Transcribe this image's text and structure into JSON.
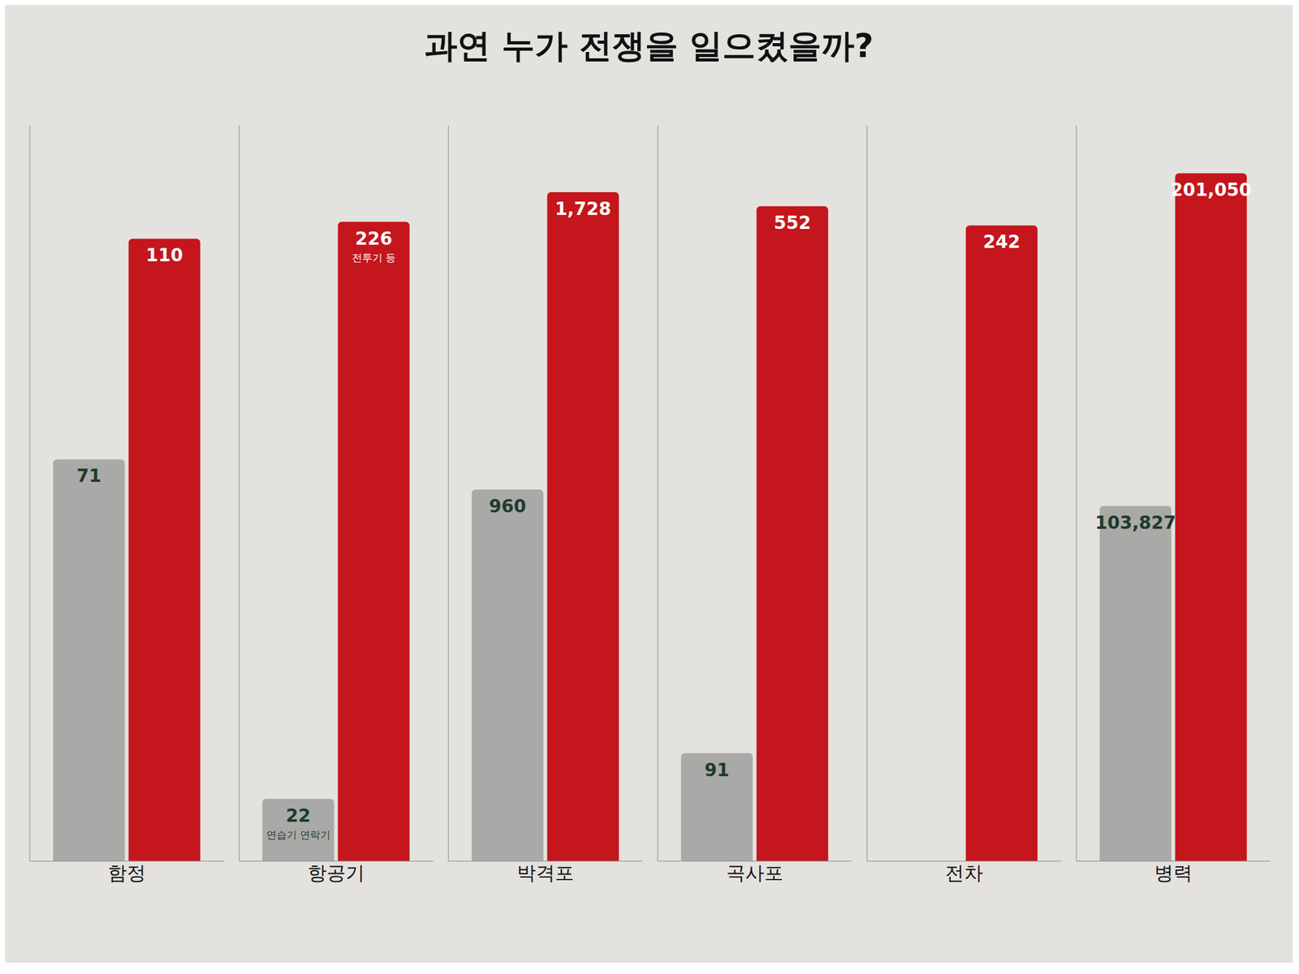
{
  "chart_data": [
    {
      "type": "bar",
      "title": "과연 누가 전쟁을 일으켰을까?",
      "categories": [
        "함정"
      ],
      "series": [
        {
          "color": "#a9a9a7",
          "values": [
            71
          ]
        },
        {
          "color": "#c4161c",
          "values": [
            110
          ]
        }
      ],
      "ylim": [
        0,
        130
      ],
      "tick_labels": false,
      "data_labels": true
    },
    {
      "type": "bar",
      "categories": [
        "항공기"
      ],
      "series": [
        {
          "color": "#a9a9a7",
          "values": [
            22
          ],
          "annotations": [
            "연습기 연락기"
          ]
        },
        {
          "color": "#c4161c",
          "values": [
            226
          ],
          "annotations": [
            "전투기 등"
          ]
        }
      ],
      "ylim": [
        0,
        260
      ],
      "tick_labels": false,
      "data_labels": true
    },
    {
      "type": "bar",
      "categories": [
        "박격포"
      ],
      "series": [
        {
          "color": "#a9a9a7",
          "values": [
            960
          ]
        },
        {
          "color": "#c4161c",
          "values": [
            1728
          ],
          "value_labels": [
            "1,728"
          ]
        }
      ],
      "ylim": [
        0,
        1900
      ],
      "tick_labels": false,
      "data_labels": true
    },
    {
      "type": "bar",
      "categories": [
        "곡사포"
      ],
      "series": [
        {
          "color": "#a9a9a7",
          "values": [
            91
          ]
        },
        {
          "color": "#c4161c",
          "values": [
            552
          ]
        }
      ],
      "ylim": [
        0,
        620
      ],
      "tick_labels": false,
      "data_labels": true
    },
    {
      "type": "bar",
      "categories": [
        "전차"
      ],
      "series": [
        {
          "color": "#a9a9a7",
          "values": [
            0
          ]
        },
        {
          "color": "#c4161c",
          "values": [
            242
          ]
        }
      ],
      "ylim": [
        0,
        280
      ],
      "tick_labels": false,
      "data_labels": true
    },
    {
      "type": "bar",
      "categories": [
        "병력"
      ],
      "series": [
        {
          "color": "#a9a9a7",
          "values": [
            103827
          ],
          "value_labels": [
            "103,827"
          ]
        },
        {
          "color": "#c4161c",
          "values": [
            201050
          ],
          "value_labels": [
            "201,050"
          ]
        }
      ],
      "ylim": [
        0,
        215000
      ],
      "tick_labels": false,
      "data_labels": true
    }
  ]
}
